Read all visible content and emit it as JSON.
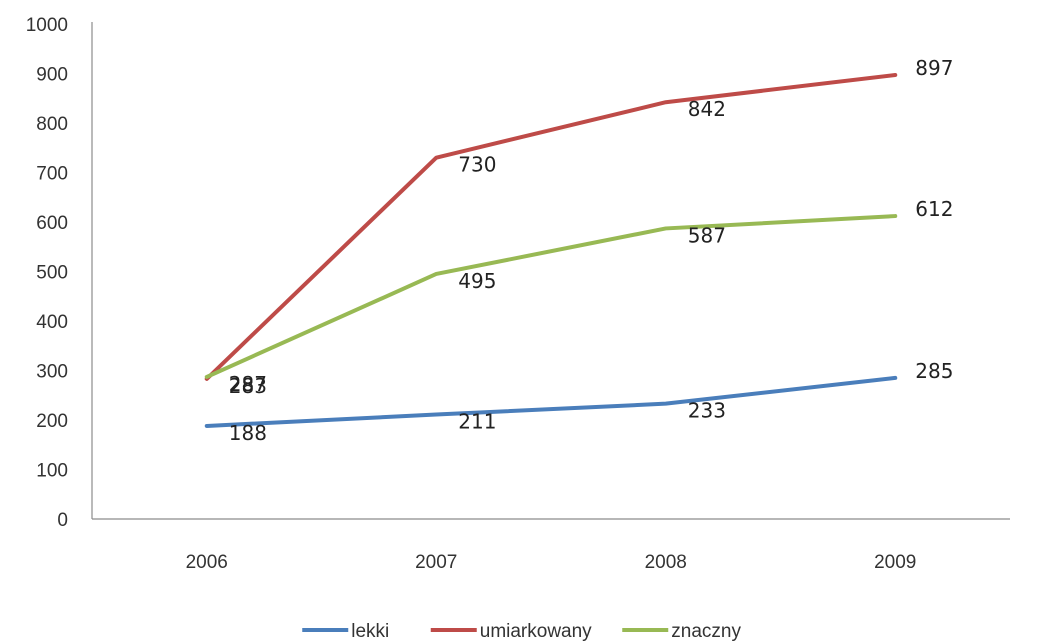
{
  "chart_data": {
    "type": "line",
    "categories": [
      "2006",
      "2007",
      "2008",
      "2009"
    ],
    "series": [
      {
        "name": "lekki",
        "color": "#4a7ebb",
        "values": [
          188,
          211,
          233,
          285
        ]
      },
      {
        "name": "umiarkowany",
        "color": "#be4b48",
        "values": [
          283,
          730,
          842,
          897
        ]
      },
      {
        "name": "znaczny",
        "color": "#98b954",
        "values": [
          287,
          495,
          587,
          612
        ]
      }
    ],
    "ylim": [
      0,
      1000
    ],
    "yticks": [
      "0",
      "100",
      "200",
      "300",
      "400",
      "500",
      "600",
      "700",
      "800",
      "900",
      "1000"
    ],
    "data_labels": true,
    "grid": false,
    "legend_position": "bottom"
  }
}
